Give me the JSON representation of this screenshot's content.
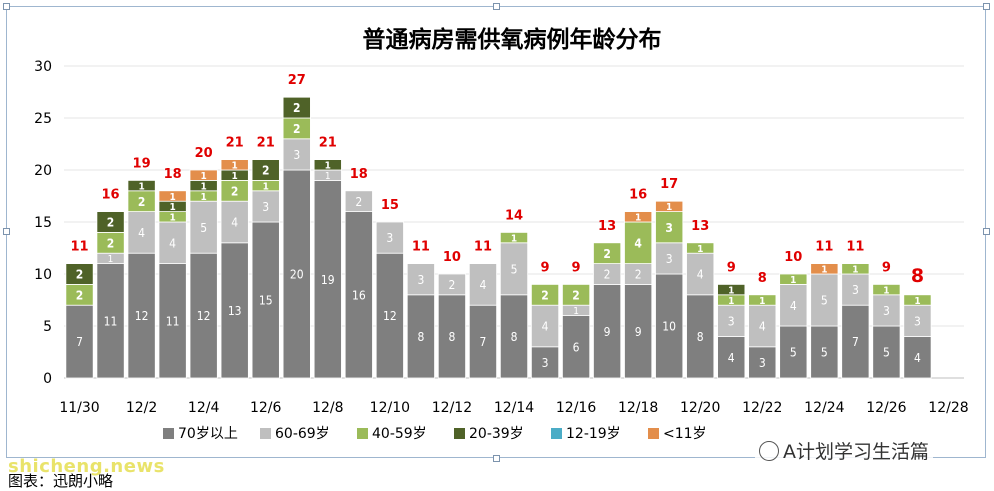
{
  "chart_data": {
    "type": "bar",
    "stacked": true,
    "title": "普通病房需供氧病例年龄分布",
    "ylim": [
      0,
      30
    ],
    "yticks": [
      0,
      5,
      10,
      15,
      20,
      25,
      30
    ],
    "grid": true,
    "legend_position": "bottom",
    "categories": [
      "11/30",
      "12/1",
      "12/2",
      "12/3",
      "12/4",
      "12/5",
      "12/6",
      "12/7",
      "12/8",
      "12/9",
      "12/10",
      "12/11",
      "12/12",
      "12/13",
      "12/14",
      "12/15",
      "12/16",
      "12/17",
      "12/18",
      "12/19",
      "12/20",
      "12/21",
      "12/22",
      "12/23",
      "12/24",
      "12/25",
      "12/26",
      "12/27",
      "12/28"
    ],
    "xtick_labels": [
      "11/30",
      "",
      "12/2",
      "",
      "12/4",
      "",
      "12/6",
      "",
      "12/8",
      "",
      "12/10",
      "",
      "12/12",
      "",
      "12/14",
      "",
      "12/16",
      "",
      "12/18",
      "",
      "12/20",
      "",
      "12/22",
      "",
      "12/24",
      "",
      "12/26",
      "",
      "12/28"
    ],
    "series": [
      {
        "name": "70岁以上",
        "color": "#7f7f7f",
        "label_color": "#ffffff",
        "values": [
          7,
          11,
          12,
          11,
          12,
          13,
          15,
          20,
          19,
          16,
          12,
          8,
          8,
          7,
          8,
          3,
          6,
          9,
          9,
          10,
          8,
          4,
          3,
          5,
          5,
          7,
          5,
          4,
          0
        ]
      },
      {
        "name": "60-69岁",
        "color": "#bfbfbf",
        "label_color": "#ffffff",
        "values": [
          0,
          1,
          4,
          4,
          5,
          4,
          3,
          3,
          1,
          2,
          3,
          3,
          2,
          4,
          5,
          4,
          1,
          2,
          2,
          3,
          4,
          3,
          4,
          4,
          5,
          3,
          3,
          3,
          0
        ]
      },
      {
        "name": "40-59岁",
        "color": "#9bbb59",
        "label_color": "#ffffff",
        "values": [
          2,
          2,
          2,
          1,
          1,
          2,
          1,
          2,
          0,
          0,
          0,
          0,
          0,
          0,
          1,
          2,
          2,
          2,
          4,
          3,
          1,
          1,
          1,
          1,
          0,
          1,
          1,
          1,
          0
        ]
      },
      {
        "name": "20-39岁",
        "color": "#4f6228",
        "label_color": "#ffffff",
        "values": [
          2,
          2,
          1,
          1,
          1,
          1,
          2,
          2,
          1,
          0,
          0,
          0,
          0,
          0,
          0,
          0,
          0,
          0,
          0,
          0,
          0,
          1,
          0,
          0,
          0,
          0,
          0,
          0,
          0
        ]
      },
      {
        "name": "12-19岁",
        "color": "#4bacc6",
        "label_color": "#ffffff",
        "values": [
          0,
          0,
          0,
          0,
          0,
          0,
          0,
          0,
          0,
          0,
          0,
          0,
          0,
          0,
          0,
          0,
          0,
          0,
          0,
          0,
          0,
          0,
          0,
          0,
          0,
          0,
          0,
          0,
          0
        ]
      },
      {
        "name": "<11岁",
        "color": "#e38e4b",
        "label_color": "#ffffff",
        "values": [
          0,
          0,
          0,
          1,
          1,
          1,
          0,
          0,
          0,
          0,
          0,
          0,
          0,
          0,
          0,
          0,
          0,
          0,
          1,
          1,
          0,
          0,
          0,
          0,
          1,
          0,
          0,
          0,
          0
        ]
      }
    ],
    "totals": [
      "11",
      "16",
      "19",
      "18",
      "20",
      "21",
      "21",
      "27",
      "21",
      "18",
      "15",
      "11",
      "10",
      "11",
      "14",
      "9",
      "9",
      "13",
      "16",
      "17",
      "13",
      "9",
      "8",
      "10",
      "11",
      "11",
      "9",
      "8",
      ""
    ],
    "total_color": "#e00000"
  },
  "caption": "图表：迅朗小略",
  "watermark": "shicheng.news",
  "wechat_label": "A计划学习生活篇"
}
